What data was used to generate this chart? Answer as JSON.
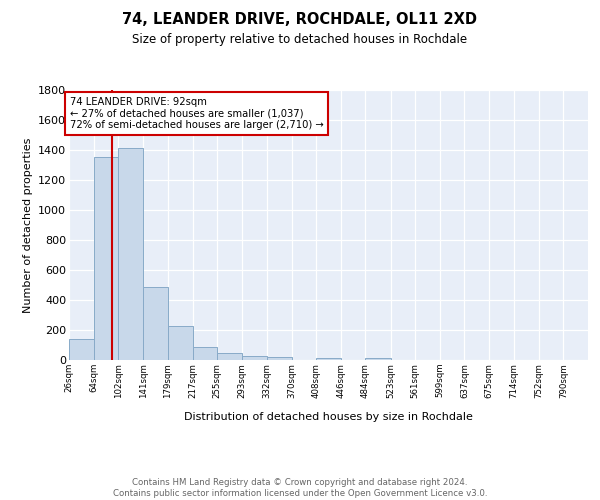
{
  "title": "74, LEANDER DRIVE, ROCHDALE, OL11 2XD",
  "subtitle": "Size of property relative to detached houses in Rochdale",
  "xlabel": "Distribution of detached houses by size in Rochdale",
  "ylabel": "Number of detached properties",
  "bin_labels": [
    "26sqm",
    "64sqm",
    "102sqm",
    "141sqm",
    "179sqm",
    "217sqm",
    "255sqm",
    "293sqm",
    "332sqm",
    "370sqm",
    "408sqm",
    "446sqm",
    "484sqm",
    "523sqm",
    "561sqm",
    "599sqm",
    "637sqm",
    "675sqm",
    "714sqm",
    "752sqm",
    "790sqm"
  ],
  "bar_heights": [
    140,
    1350,
    1410,
    490,
    230,
    85,
    50,
    30,
    20,
    0,
    15,
    0,
    15,
    0,
    0,
    0,
    0,
    0,
    0,
    0
  ],
  "bar_color": "#c8d8ea",
  "bar_edge_color": "#88aac8",
  "ylim": [
    0,
    1800
  ],
  "yticks": [
    0,
    200,
    400,
    600,
    800,
    1000,
    1200,
    1400,
    1600,
    1800
  ],
  "property_line_x": 92,
  "property_line_color": "#cc0000",
  "annotation_text": "74 LEANDER DRIVE: 92sqm\n← 27% of detached houses are smaller (1,037)\n72% of semi-detached houses are larger (2,710) →",
  "annotation_box_color": "#ffffff",
  "annotation_box_edge_color": "#cc0000",
  "footer_text": "Contains HM Land Registry data © Crown copyright and database right 2024.\nContains public sector information licensed under the Open Government Licence v3.0.",
  "background_color": "#e8eef8",
  "bin_edges": [
    26,
    64,
    102,
    141,
    179,
    217,
    255,
    293,
    332,
    370,
    408,
    446,
    484,
    523,
    561,
    599,
    637,
    675,
    714,
    752,
    790
  ]
}
